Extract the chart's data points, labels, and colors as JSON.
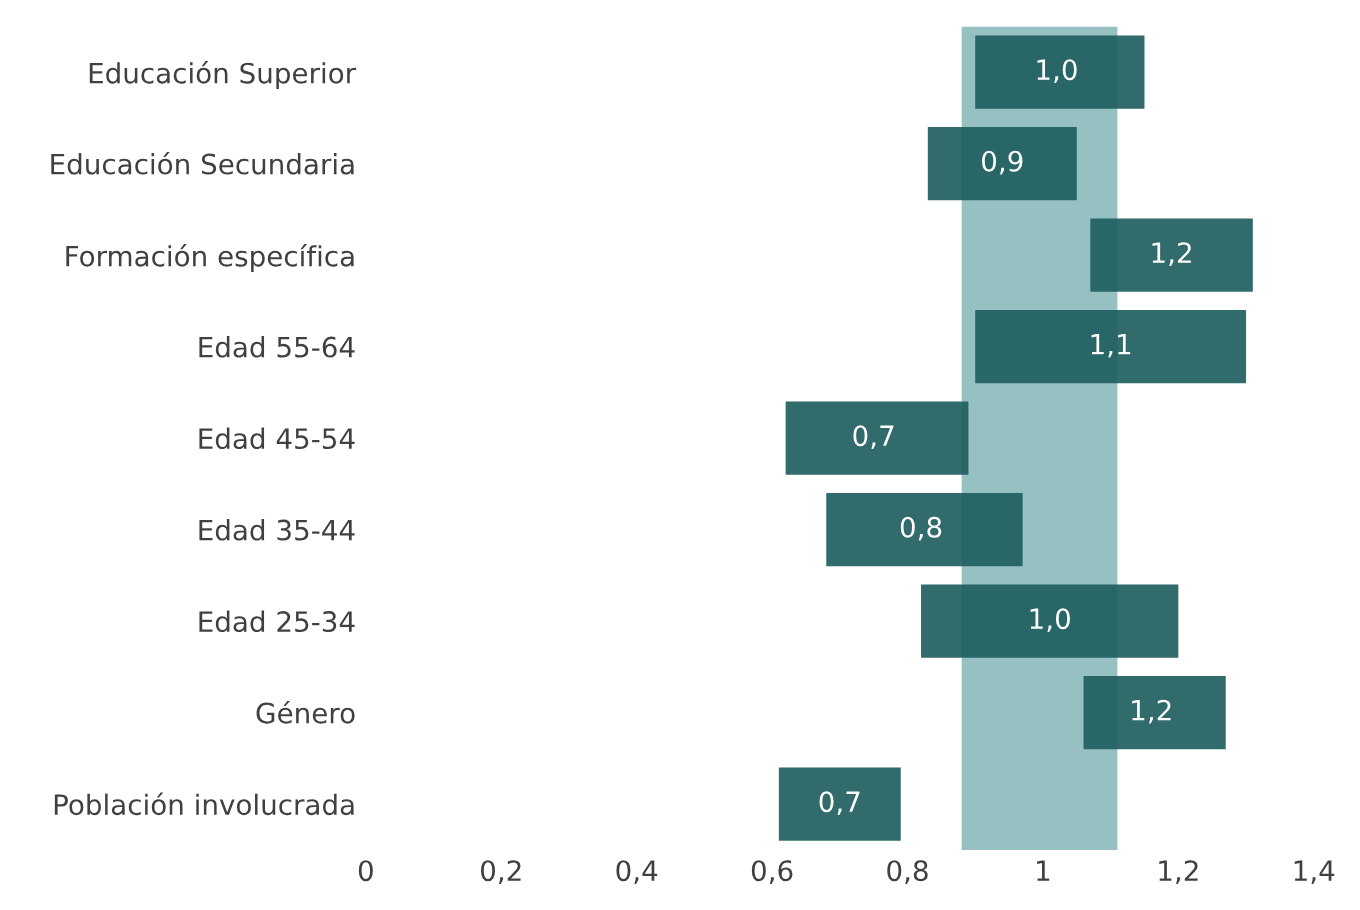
{
  "chart_data": {
    "type": "bar",
    "orientation": "horizontal",
    "categories": [
      "Educación Superior",
      "Educación Secundaria",
      "Formación específica",
      "Edad 55-64",
      "Edad 45-54",
      "Edad 35-44",
      "Edad 25-34",
      "Género",
      "Población involucrada"
    ],
    "base": [
      0.9,
      0.83,
      1.07,
      0.9,
      0.62,
      0.68,
      0.82,
      1.06,
      0.61
    ],
    "values": [
      0.25,
      0.22,
      0.24,
      0.4,
      0.27,
      0.29,
      0.38,
      0.21,
      0.18
    ],
    "annotations": [
      {
        "text": "1,0",
        "x": 1.02,
        "y": "Educación Superior"
      },
      {
        "text": "0,9",
        "x": 0.94,
        "y": "Educación Secundaria"
      },
      {
        "text": "1,2",
        "x": 1.19,
        "y": "Formación específica"
      },
      {
        "text": "1,1",
        "x": 1.1,
        "y": "Edad 55-64"
      },
      {
        "text": "0,7",
        "x": 0.75,
        "y": "Edad 45-54"
      },
      {
        "text": "0,8",
        "x": 0.82,
        "y": "Edad 35-44"
      },
      {
        "text": "1,0",
        "x": 1.01,
        "y": "Edad 25-34"
      },
      {
        "text": "1,2",
        "x": 1.16,
        "y": "Género"
      },
      {
        "text": "0,7",
        "x": 0.7,
        "y": "Población involucrada"
      }
    ],
    "color": "#1f5e60",
    "bands": [
      {
        "axis": "x",
        "from": 0.88,
        "to": 1.11,
        "color": "#96c0c2"
      }
    ],
    "xlim": [
      0,
      1.4
    ],
    "xticks": [
      0,
      {
        "value": 0.2,
        "label": "0,2"
      },
      {
        "value": 0.4,
        "label": "0,4"
      },
      {
        "value": 0.6,
        "label": "0,6"
      },
      {
        "value": 0.8,
        "label": "0,8"
      },
      1,
      {
        "value": 1.2,
        "label": "1,2"
      },
      {
        "value": 1.4,
        "label": "1,4"
      }
    ],
    "grid": false
  }
}
